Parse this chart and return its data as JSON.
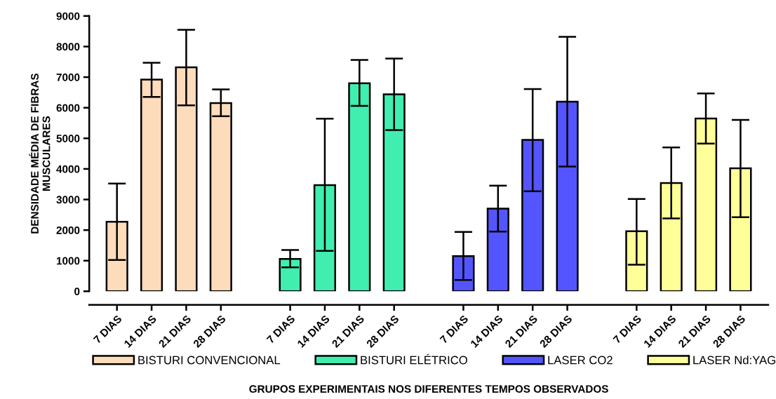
{
  "chart_data": {
    "type": "bar",
    "xlabel": "GRUPOS EXPERIMENTAIS NOS DIFERENTES TEMPOS OBSERVADOS",
    "ylabel": "DENSIDADE MÉDIA DE FIBRAS\nMUSCULARES",
    "categories": [
      "7 DIAS",
      "14 DIAS",
      "21 DIAS",
      "28 DIAS",
      null,
      "7 DIAS",
      "14 DIAS",
      "21 DIAS",
      "28 DIAS",
      null,
      "7 DIAS",
      "14 DIAS",
      "21 DIAS",
      "28 DIAS",
      null,
      "7 DIAS",
      "14 DIAS",
      "21 DIAS",
      "28 DIAS"
    ],
    "series": [
      {
        "name": "BISTURI CONVENCIONAL",
        "color": "#fddcbc",
        "values": [
          2270,
          6920,
          7320,
          6150,
          null,
          null,
          null,
          null,
          null,
          null,
          null,
          null,
          null,
          null,
          null,
          null,
          null,
          null,
          null
        ],
        "errors": [
          [
            1020,
            3520
          ],
          [
            6350,
            7470
          ],
          [
            6080,
            8550
          ],
          [
            5720,
            6600
          ],
          null,
          null,
          null,
          null,
          null,
          null,
          null,
          null,
          null,
          null,
          null,
          null,
          null,
          null,
          null
        ]
      },
      {
        "name": "BISTURI ELÉTRICO",
        "color": "#40eeb0",
        "values": [
          null,
          null,
          null,
          null,
          null,
          1060,
          3470,
          6800,
          6440,
          null,
          null,
          null,
          null,
          null,
          null,
          null,
          null,
          null,
          null
        ],
        "errors": [
          null,
          null,
          null,
          null,
          null,
          [
            780,
            1350
          ],
          [
            1320,
            5640
          ],
          [
            6060,
            7560
          ],
          [
            5270,
            7610
          ],
          null,
          null,
          null,
          null,
          null,
          null,
          null,
          null,
          null,
          null
        ]
      },
      {
        "name": "LASER CO2",
        "color": "#5555ff",
        "values": [
          null,
          null,
          null,
          null,
          null,
          null,
          null,
          null,
          null,
          null,
          1150,
          2700,
          4950,
          6200,
          null,
          null,
          null,
          null,
          null
        ],
        "errors": [
          null,
          null,
          null,
          null,
          null,
          null,
          null,
          null,
          null,
          null,
          [
            370,
            1940
          ],
          [
            1950,
            3450
          ],
          [
            3270,
            6610
          ],
          [
            4080,
            8320
          ],
          null,
          null,
          null,
          null,
          null
        ]
      },
      {
        "name": "LASER Nd:YAG",
        "color": "#ffff99",
        "values": [
          null,
          null,
          null,
          null,
          null,
          null,
          null,
          null,
          null,
          null,
          null,
          null,
          null,
          null,
          null,
          1960,
          3540,
          5650,
          4020
        ],
        "errors": [
          null,
          null,
          null,
          null,
          null,
          null,
          null,
          null,
          null,
          null,
          null,
          null,
          null,
          null,
          null,
          [
            870,
            3020
          ],
          [
            2380,
            4700
          ],
          [
            4830,
            6470
          ],
          [
            2420,
            5600
          ]
        ]
      }
    ],
    "ylim": [
      0,
      9000
    ],
    "yticks": [
      0,
      1000,
      2000,
      3000,
      4000,
      5000,
      6000,
      7000,
      8000,
      9000
    ],
    "grid": false,
    "legend": "bottom"
  }
}
